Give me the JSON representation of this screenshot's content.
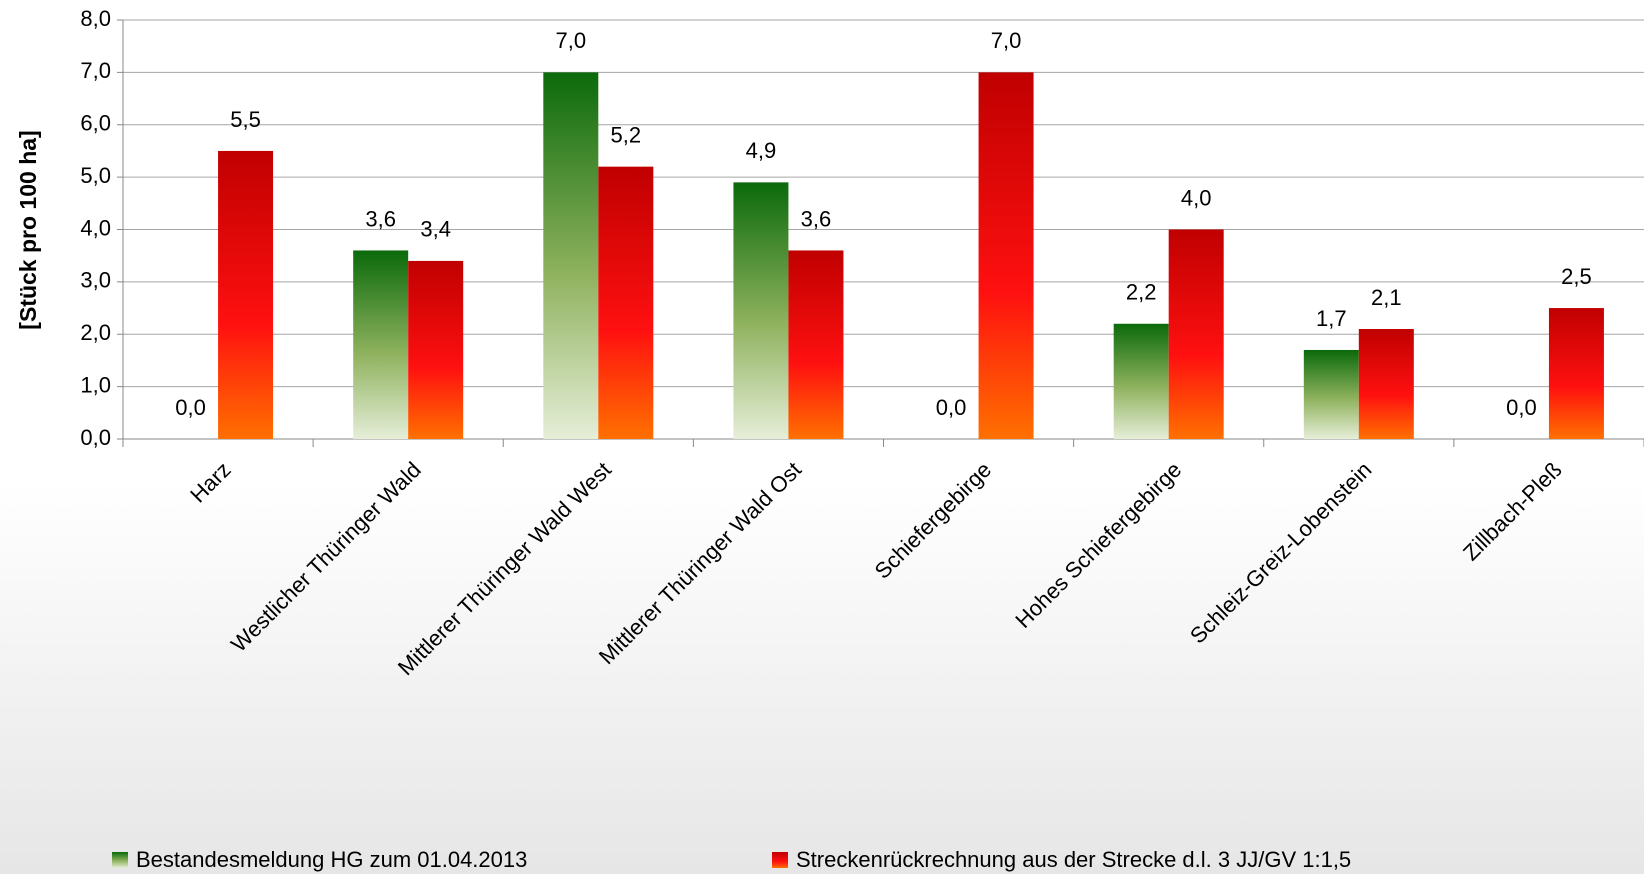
{
  "chart_data": {
    "type": "bar",
    "y_label": "[Stück pro 100 ha]",
    "categories": [
      "Harz",
      "Westlicher Thüringer Wald",
      "Mittlerer Thüringer Wald West",
      "Mittlerer Thüringer Wald Ost",
      "Schiefergebirge",
      "Hohes Schiefergebirge",
      "Schleiz-Greiz-Lobenstein",
      "Zillbach-Pleß"
    ],
    "series": [
      {
        "name": "Bestandesmeldung HG zum 01.04.2013",
        "color": "#0b6a0b",
        "values": [
          0,
          3.6,
          7.0,
          4.9,
          0,
          2.2,
          1.7,
          0
        ],
        "value_labels": [
          "0,0",
          "3,6",
          "7,0",
          "4,9",
          "0,0",
          "2,2",
          "1,7",
          "0,0"
        ]
      },
      {
        "name": "Streckenrückrechnung aus der Strecke d.l. 3 JJ/GV 1:1,5",
        "color": "#c00000",
        "values": [
          5.5,
          3.4,
          5.2,
          3.6,
          7.0,
          4.0,
          2.1,
          2.5
        ],
        "value_labels": [
          "5,5",
          "3,4",
          "5,2",
          "3,6",
          "7,0",
          "4,0",
          "2,1",
          "2,5"
        ]
      }
    ],
    "ylim": [
      0,
      8
    ],
    "yticks": [
      {
        "value": 0,
        "label": "0,0"
      },
      {
        "value": 1,
        "label": "1,0"
      },
      {
        "value": 2,
        "label": "2,0"
      },
      {
        "value": 3,
        "label": "3,0"
      },
      {
        "value": 4,
        "label": "4,0"
      },
      {
        "value": 5,
        "label": "5,0"
      },
      {
        "value": 6,
        "label": "6,0"
      },
      {
        "value": 7,
        "label": "7,0"
      },
      {
        "value": 8,
        "label": "8,0"
      }
    ],
    "grid": true
  }
}
